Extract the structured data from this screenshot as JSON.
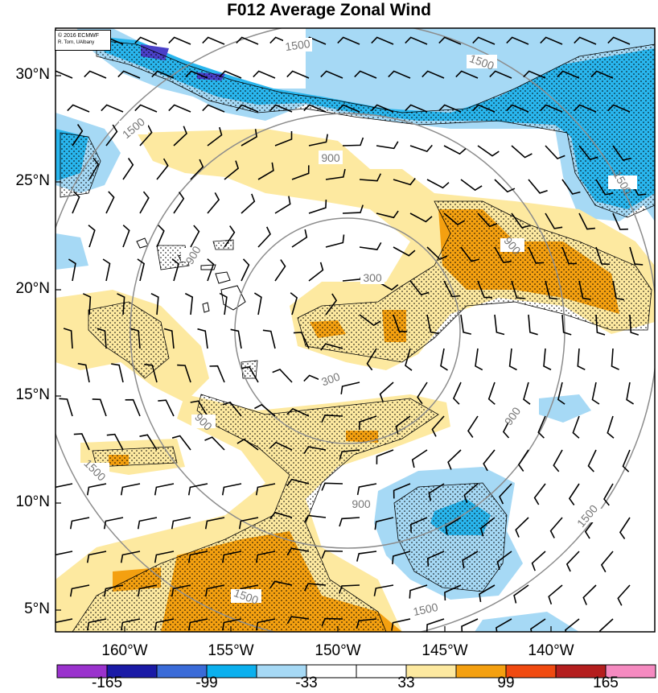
{
  "title": "F012 Average Zonal Wind",
  "copyright": {
    "line1": "© 2016 ECMWF",
    "line2": "R. Torn, UAlbany"
  },
  "lat_labels": [
    "30°N",
    "25°N",
    "20°N",
    "15°N",
    "10°N",
    "5°N"
  ],
  "lon_labels": [
    "160°W",
    "155°W",
    "150°W",
    "145°W",
    "140°W"
  ],
  "contour_labels": [
    "1500",
    "1500",
    "1500",
    "1500",
    "1500",
    "1500",
    "1500",
    "1500",
    "900",
    "900",
    "900",
    "900",
    "900",
    "300",
    "300"
  ],
  "colorbar": {
    "labels": [
      "-165",
      "-99",
      "-33",
      "33",
      "99",
      "165"
    ],
    "colors": [
      "#9a32cd",
      "#1a1aa6",
      "#3a6bd8",
      "#0bb0ee",
      "#a6d9f5",
      "#ffffff",
      "#ffffff",
      "#fde9a0",
      "#f4a010",
      "#f04a10",
      "#b41e1e",
      "#f58ac0"
    ]
  },
  "colors": {
    "contour": "#8c8c8c",
    "light_blue": "#a6d9f5",
    "mid_blue": "#29b6ee",
    "purple_blue": "#4a40c8",
    "light_yellow": "#fde9a0",
    "orange": "#f4a010"
  }
}
